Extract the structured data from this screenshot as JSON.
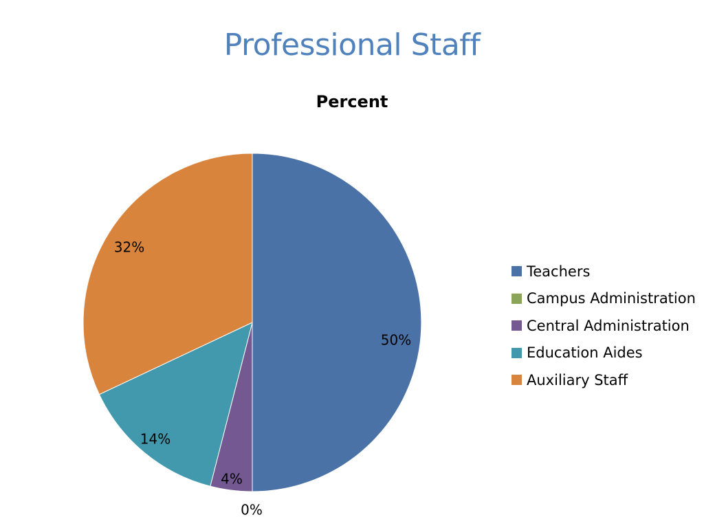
{
  "slide": {
    "title": "Professional Staff"
  },
  "chart_data": {
    "type": "pie",
    "title": "Percent",
    "categories": [
      "Teachers",
      "Campus Administration",
      "Central Administration",
      "Education Aides",
      "Auxiliary Staff"
    ],
    "values": [
      50,
      0,
      4,
      14,
      32
    ],
    "labels": [
      "50%",
      "0%",
      "4%",
      "14%",
      "32%"
    ],
    "colors": [
      "#4a72a6",
      "#8aa558",
      "#735892",
      "#4299ad",
      "#d9843c"
    ],
    "start_angle": "12 o'clock",
    "direction": "clockwise",
    "legend_position": "right"
  }
}
